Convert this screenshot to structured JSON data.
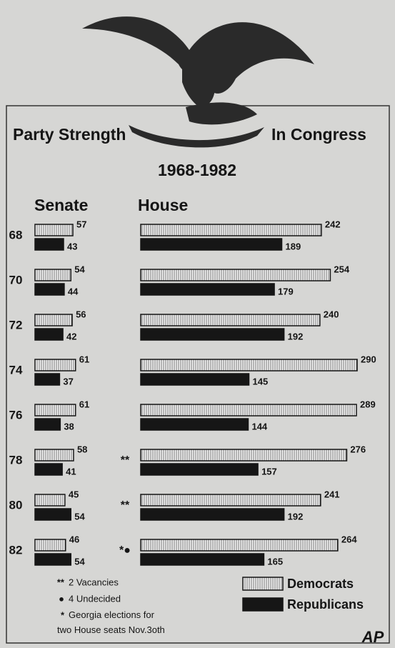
{
  "title": "Party Strength",
  "title_right": "In Congress",
  "subtitle": "1968-1982",
  "chart_data": [
    {
      "type": "hbar",
      "title": "Senate",
      "categories": [
        "68",
        "70",
        "72",
        "74",
        "76",
        "78",
        "80",
        "82"
      ],
      "series": [
        {
          "name": "Democrats",
          "color": "#f2f2f2",
          "values": [
            57,
            54,
            56,
            61,
            61,
            58,
            45,
            46
          ]
        },
        {
          "name": "Republicans",
          "color": "#161616",
          "values": [
            43,
            44,
            42,
            37,
            38,
            41,
            54,
            54
          ]
        }
      ]
    },
    {
      "type": "hbar",
      "title": "House",
      "category_notes": [
        null,
        null,
        null,
        null,
        null,
        "**",
        "**",
        "*●"
      ],
      "series": [
        {
          "name": "Democrats",
          "color": "#f2f2f2",
          "values": [
            242,
            254,
            240,
            290,
            289,
            276,
            241,
            264
          ]
        },
        {
          "name": "Republicans",
          "color": "#161616",
          "values": [
            189,
            179,
            192,
            145,
            144,
            157,
            192,
            165
          ]
        }
      ]
    }
  ],
  "footnotes": [
    {
      "symbol": "**",
      "text": "2 Vacancies"
    },
    {
      "symbol": "●",
      "text": "4 Undecided"
    },
    {
      "symbol": "*",
      "text": "Georgia elections for two House seats Nov.3oth"
    }
  ],
  "credit": "AP"
}
